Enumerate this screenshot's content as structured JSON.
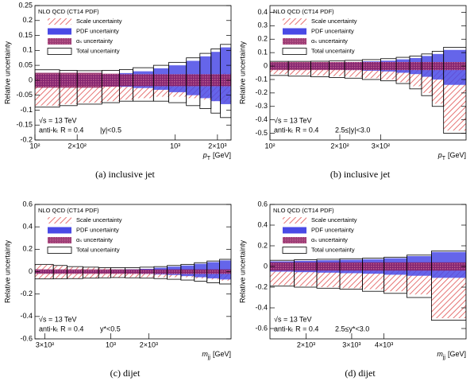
{
  "chart_data": [
    {
      "type": "uncertainty-band",
      "legend_title": "NLO QCD (CT14 PDF)",
      "ylabel": "Relative uncertainty",
      "xlabel": {
        "symbol": "p",
        "sub": "T",
        "unit": "[GeV]"
      },
      "energy": "√s = 13 TeV",
      "algorithm": "anti-kₜ R = 0.4",
      "region": "|y|<0.5",
      "caption": "(a)  inclusive jet",
      "log_x": true,
      "xlim": [
        100,
        2500
      ],
      "xticks": [
        {
          "value": 100,
          "label": "10²"
        },
        {
          "value": 200,
          "label": "2×10²"
        },
        {
          "value": 1000,
          "label": "10³"
        },
        {
          "value": 2000,
          "label": "2×10³"
        }
      ],
      "ylim": [
        -0.2,
        0.25
      ],
      "yticks": [
        -0.2,
        -0.15,
        -0.1,
        -0.05,
        0,
        0.05,
        0.1,
        0.15,
        0.2,
        0.25
      ],
      "bins": [
        100,
        150,
        200,
        300,
        400,
        500,
        700,
        900,
        1200,
        1500,
        1800,
        2100,
        2500
      ],
      "series": [
        {
          "name": "Scale uncertainty",
          "color": "#e05050",
          "style": "hatch",
          "low": [
            -0.085,
            -0.08,
            -0.075,
            -0.07,
            -0.065,
            -0.06,
            -0.055,
            -0.055,
            -0.06,
            -0.065,
            -0.07,
            -0.075
          ],
          "high": [
            0.005,
            0.005,
            0,
            0,
            0,
            0,
            0.005,
            0.01,
            0.015,
            0.02,
            0.02,
            0.025
          ]
        },
        {
          "name": "PDF uncertainty",
          "color": "#4a4ae6",
          "style": "solid",
          "low": [
            -0.02,
            -0.018,
            -0.018,
            -0.02,
            -0.022,
            -0.026,
            -0.032,
            -0.04,
            -0.05,
            -0.06,
            -0.07,
            -0.08
          ],
          "high": [
            0.02,
            0.018,
            0.018,
            0.02,
            0.024,
            0.03,
            0.04,
            0.05,
            0.065,
            0.08,
            0.095,
            0.11
          ]
        },
        {
          "name": "αₛ uncertainty",
          "color": "#8a1a5c",
          "style": "crosshatch",
          "low": [
            -0.025,
            -0.025,
            -0.025,
            -0.022,
            -0.02,
            -0.02,
            -0.02,
            -0.02,
            -0.02,
            -0.02,
            -0.02,
            -0.02
          ],
          "high": [
            0.025,
            0.025,
            0.025,
            0.022,
            0.02,
            0.02,
            0.02,
            0.02,
            0.02,
            0.02,
            0.02,
            0.02
          ]
        },
        {
          "name": "Total uncertainty",
          "color": "#000000",
          "style": "outline",
          "low": [
            -0.09,
            -0.085,
            -0.08,
            -0.075,
            -0.07,
            -0.07,
            -0.07,
            -0.075,
            -0.085,
            -0.095,
            -0.11,
            -0.125
          ],
          "high": [
            0.035,
            0.033,
            0.032,
            0.033,
            0.036,
            0.042,
            0.05,
            0.06,
            0.075,
            0.09,
            0.105,
            0.12
          ]
        }
      ]
    },
    {
      "type": "uncertainty-band",
      "legend_title": "NLO QCD (CT14 PDF)",
      "ylabel": "Relative uncertainty",
      "xlabel": {
        "symbol": "p",
        "sub": "T",
        "unit": "[GeV]"
      },
      "energy": "√s = 13 TeV",
      "algorithm": "anti-kₜ R = 0.4",
      "region": "2.5≤|y|<3.0",
      "caption": "(b)  inclusive jet",
      "log_x": true,
      "xlim": [
        100,
        700
      ],
      "xticks": [
        {
          "value": 100,
          "label": "10²"
        },
        {
          "value": 200,
          "label": "2×10²"
        },
        {
          "value": 300,
          "label": "3×10²"
        }
      ],
      "ylim": [
        -0.55,
        0.45
      ],
      "yticks": [
        -0.5,
        -0.4,
        -0.3,
        -0.2,
        -0.1,
        0,
        0.1,
        0.2,
        0.3,
        0.4
      ],
      "bins": [
        100,
        120,
        150,
        180,
        210,
        250,
        300,
        350,
        400,
        450,
        500,
        560,
        700
      ],
      "series": [
        {
          "name": "Scale uncertainty",
          "color": "#e05050",
          "style": "hatch",
          "low": [
            -0.06,
            -0.065,
            -0.07,
            -0.075,
            -0.08,
            -0.09,
            -0.1,
            -0.12,
            -0.15,
            -0.2,
            -0.28,
            -0.48
          ],
          "high": [
            -0.01,
            -0.01,
            -0.01,
            -0.01,
            -0.01,
            -0.01,
            -0.01,
            -0.01,
            -0.005,
            0,
            0,
            0.02
          ]
        },
        {
          "name": "PDF uncertainty",
          "color": "#4a4ae6",
          "style": "solid",
          "low": [
            -0.02,
            -0.02,
            -0.022,
            -0.025,
            -0.03,
            -0.035,
            -0.04,
            -0.05,
            -0.06,
            -0.08,
            -0.1,
            -0.14
          ],
          "high": [
            0.02,
            0.02,
            0.022,
            0.025,
            0.03,
            0.035,
            0.04,
            0.05,
            0.06,
            0.075,
            0.09,
            0.12
          ]
        },
        {
          "name": "αₛ uncertainty",
          "color": "#8a1a5c",
          "style": "crosshatch",
          "low": [
            -0.03,
            -0.03,
            -0.03,
            -0.03,
            -0.03,
            -0.03,
            -0.03,
            -0.03,
            -0.03,
            -0.03,
            -0.03,
            -0.03
          ],
          "high": [
            0.03,
            0.03,
            0.03,
            0.03,
            0.03,
            0.03,
            0.03,
            0.03,
            0.03,
            0.03,
            0.03,
            0.03
          ]
        },
        {
          "name": "Total uncertainty",
          "color": "#000000",
          "style": "outline",
          "low": [
            -0.07,
            -0.075,
            -0.08,
            -0.085,
            -0.09,
            -0.1,
            -0.11,
            -0.13,
            -0.17,
            -0.22,
            -0.3,
            -0.5
          ],
          "high": [
            0.035,
            0.035,
            0.036,
            0.038,
            0.042,
            0.048,
            0.055,
            0.065,
            0.075,
            0.09,
            0.11,
            0.14
          ]
        }
      ]
    },
    {
      "type": "uncertainty-band",
      "legend_title": "NLO QCD (CT14 PDF)",
      "ylabel": "Relative uncertainty",
      "xlabel": {
        "symbol": "m",
        "sub": "jj",
        "unit": "[GeV]"
      },
      "energy": "√s = 13 TeV",
      "algorithm": "anti-kₜ R = 0.4",
      "region": "y*<0.5",
      "caption": "(c)  dijet",
      "log_x": true,
      "xlim": [
        250,
        9000
      ],
      "xticks": [
        {
          "value": 300,
          "label": "3×10²"
        },
        {
          "value": 1000,
          "label": "10³"
        },
        {
          "value": 2000,
          "label": "2×10³"
        }
      ],
      "ylim": [
        -0.6,
        0.6
      ],
      "yticks": [
        -0.6,
        -0.4,
        -0.2,
        0,
        0.2,
        0.4,
        0.6
      ],
      "bins": [
        250,
        350,
        450,
        600,
        800,
        1000,
        1300,
        1700,
        2200,
        2800,
        3600,
        4600,
        5800,
        7300,
        9000
      ],
      "series": [
        {
          "name": "Scale uncertainty",
          "color": "#e05050",
          "style": "hatch",
          "low": [
            -0.06,
            -0.06,
            -0.06,
            -0.055,
            -0.05,
            -0.05,
            -0.05,
            -0.05,
            -0.05,
            -0.05,
            -0.05,
            -0.06,
            -0.07,
            -0.08
          ],
          "high": [
            0.06,
            0.05,
            0.04,
            0.035,
            0.03,
            0.02,
            0.015,
            0.01,
            0.01,
            0.01,
            0.01,
            0.01,
            0.02,
            0.02
          ]
        },
        {
          "name": "PDF uncertainty",
          "color": "#4a4ae6",
          "style": "solid",
          "low": [
            -0.015,
            -0.012,
            -0.01,
            -0.01,
            -0.01,
            -0.012,
            -0.015,
            -0.02,
            -0.025,
            -0.03,
            -0.04,
            -0.05,
            -0.06,
            -0.07
          ],
          "high": [
            0.015,
            0.012,
            0.01,
            0.01,
            0.012,
            0.015,
            0.02,
            0.025,
            0.035,
            0.045,
            0.055,
            0.07,
            0.085,
            0.1
          ]
        },
        {
          "name": "αₛ uncertainty",
          "color": "#8a1a5c",
          "style": "crosshatch",
          "low": [
            -0.02,
            -0.02,
            -0.02,
            -0.02,
            -0.02,
            -0.02,
            -0.02,
            -0.02,
            -0.02,
            -0.02,
            -0.02,
            -0.02,
            -0.02,
            -0.02
          ],
          "high": [
            0.02,
            0.02,
            0.02,
            0.02,
            0.02,
            0.02,
            0.02,
            0.02,
            0.02,
            0.02,
            0.02,
            0.02,
            0.02,
            0.02
          ]
        },
        {
          "name": "Total uncertainty",
          "color": "#000000",
          "style": "outline",
          "low": [
            -0.065,
            -0.063,
            -0.062,
            -0.058,
            -0.055,
            -0.053,
            -0.055,
            -0.058,
            -0.062,
            -0.068,
            -0.075,
            -0.085,
            -0.1,
            -0.11
          ],
          "high": [
            0.065,
            0.055,
            0.045,
            0.04,
            0.035,
            0.035,
            0.035,
            0.04,
            0.045,
            0.055,
            0.065,
            0.08,
            0.095,
            0.11
          ]
        }
      ]
    },
    {
      "type": "uncertainty-band",
      "legend_title": "NLO QCD (CT14 PDF)",
      "ylabel": "Relative uncertainty",
      "xlabel": {
        "symbol": "m",
        "sub": "jj",
        "unit": "[GeV]"
      },
      "energy": "√s = 13 TeV",
      "algorithm": "anti-kₜ R = 0.4",
      "region": "2.5≤y*<3.0",
      "caption": "(d)  dijet",
      "log_x": true,
      "xlim": [
        1450,
        8300
      ],
      "xticks": [
        {
          "value": 2000,
          "label": "2×10³"
        },
        {
          "value": 3000,
          "label": "3×10³"
        },
        {
          "value": 4000,
          "label": "4×10³"
        }
      ],
      "ylim": [
        -0.7,
        0.6
      ],
      "yticks": [
        -0.6,
        -0.4,
        -0.2,
        0,
        0.2,
        0.4,
        0.6
      ],
      "bins": [
        1450,
        1800,
        2200,
        2700,
        3300,
        4000,
        4900,
        6100,
        8300
      ],
      "series": [
        {
          "name": "Scale uncertainty",
          "color": "#e05050",
          "style": "hatch",
          "low": [
            -0.18,
            -0.19,
            -0.2,
            -0.21,
            -0.22,
            -0.24,
            -0.27,
            -0.5
          ],
          "high": [
            0,
            0,
            0,
            0,
            0,
            0,
            0,
            0
          ]
        },
        {
          "name": "PDF uncertainty",
          "color": "#4a4ae6",
          "style": "solid",
          "low": [
            -0.05,
            -0.055,
            -0.06,
            -0.065,
            -0.07,
            -0.08,
            -0.09,
            -0.11
          ],
          "high": [
            0.05,
            0.055,
            0.06,
            0.065,
            0.07,
            0.08,
            0.1,
            0.14
          ]
        },
        {
          "name": "αₛ uncertainty",
          "color": "#8a1a5c",
          "style": "crosshatch",
          "low": [
            -0.04,
            -0.04,
            -0.04,
            -0.04,
            -0.04,
            -0.04,
            -0.04,
            -0.04
          ],
          "high": [
            0.04,
            0.04,
            0.04,
            0.04,
            0.04,
            0.04,
            0.04,
            0.04
          ]
        },
        {
          "name": "Total uncertainty",
          "color": "#000000",
          "style": "outline",
          "low": [
            -0.19,
            -0.2,
            -0.21,
            -0.22,
            -0.24,
            -0.26,
            -0.3,
            -0.52
          ],
          "high": [
            0.06,
            0.065,
            0.07,
            0.075,
            0.08,
            0.09,
            0.11,
            0.15
          ]
        }
      ]
    }
  ]
}
